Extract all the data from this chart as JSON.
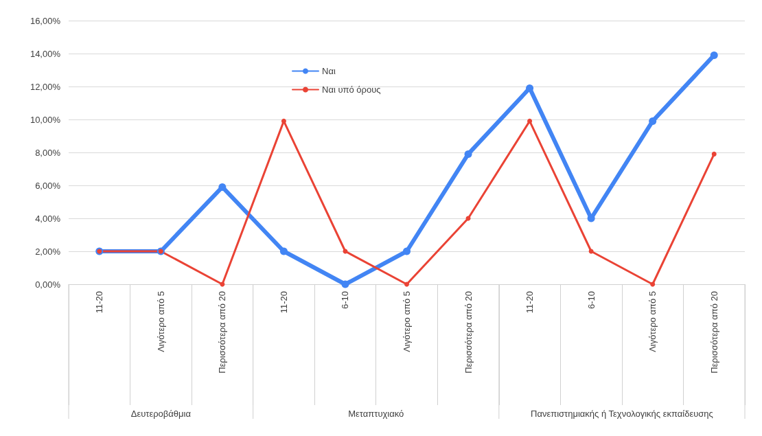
{
  "chart_data": {
    "type": "line",
    "categories": [
      "11-20",
      "Λιγότερο από 5",
      "Περισσότερα από 20",
      "11-20",
      "6-10",
      "Λιγότερο από 5",
      "Περισσότερα από 20",
      "11-20",
      "6-10",
      "Λιγότερο από 5",
      "Περισσότερα από 20"
    ],
    "series": [
      {
        "name": "Ναι",
        "color": "#4285f4",
        "values": [
          2.0,
          2.0,
          5.9,
          2.0,
          0,
          2.0,
          7.9,
          11.9,
          4.0,
          9.9,
          13.9
        ]
      },
      {
        "name": "Ναι υπό όρους",
        "color": "#ea4335",
        "values": [
          2.0,
          2.0,
          0,
          9.9,
          2.0,
          0,
          4.0,
          9.9,
          2.0,
          0,
          7.9
        ]
      }
    ],
    "annotations": [
      "Δευτεροβάθμια",
      "Μεταπτυχιακό",
      "Πανεπιστημιακής ή Τεχνολογικής εκπαίδευσης"
    ],
    "ylim": [
      0,
      16
    ],
    "yticks": [
      {
        "value": 0,
        "label": "0,00%"
      },
      {
        "value": 2,
        "label": "2,00%"
      },
      {
        "value": 4,
        "label": "4,00%"
      },
      {
        "value": 6,
        "label": "6,00%"
      },
      {
        "value": 8,
        "label": "8,00%"
      },
      {
        "value": 10,
        "label": "10,00%"
      },
      {
        "value": 12,
        "label": "12,00%"
      },
      {
        "value": 14,
        "label": "14,00%"
      },
      {
        "value": 16,
        "label": "16,00%"
      }
    ],
    "grid": "y",
    "legend": "top",
    "marker": "circle",
    "line_style": "solid"
  }
}
